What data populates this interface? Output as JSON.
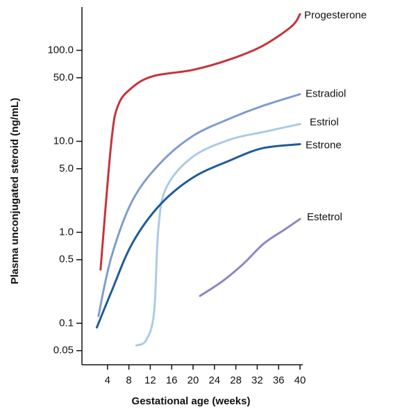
{
  "chart_data": {
    "type": "line",
    "log_y": true,
    "x_label": "Gestational age (weeks)",
    "y_label": "Plasma unconjugated steroid (ng/mL)",
    "xlim": [
      0,
      40
    ],
    "xticks": [
      4,
      8,
      12,
      16,
      20,
      24,
      28,
      32,
      36,
      40
    ],
    "ylim": [
      0.035,
      300
    ],
    "yticks": [
      0.05,
      0.1,
      0.5,
      {
        "value": 1,
        "label": "1.0"
      },
      {
        "value": 5,
        "label": "5.0"
      },
      {
        "value": 10,
        "label": "10.0"
      },
      {
        "value": 50,
        "label": "50.0"
      },
      {
        "value": 100,
        "label": "100.0"
      }
    ],
    "series": [
      {
        "name": "Progesterone",
        "color": "#c8323a",
        "x": [
          2.7,
          4.7,
          6,
          8.6,
          12.5,
          20,
          27,
          33,
          38.4,
          40
        ],
        "values": [
          0.39,
          9.6,
          25,
          39,
          52,
          61,
          80,
          112,
          183,
          250
        ]
      },
      {
        "name": "Estradiol",
        "color": "#7f9ccf",
        "x": [
          2.3,
          4.7,
          8.6,
          13.8,
          20,
          27,
          33,
          40
        ],
        "values": [
          0.12,
          0.53,
          2.2,
          5.7,
          11.5,
          17.9,
          24.5,
          33
        ]
      },
      {
        "name": "Estriol",
        "color": "#a9cbe8",
        "x": [
          9.4,
          11.2,
          12.7,
          13.5,
          15,
          20,
          27,
          33,
          40
        ],
        "values": [
          0.057,
          0.065,
          0.13,
          1.07,
          3.1,
          6.8,
          10.5,
          12.6,
          15.5
        ]
      },
      {
        "name": "Estrone",
        "color": "#1f5a9c",
        "x": [
          2,
          4.7,
          8.6,
          13.8,
          20,
          27,
          33,
          40
        ],
        "values": [
          0.09,
          0.22,
          0.75,
          2,
          4,
          6.2,
          8.4,
          9.3
        ]
      },
      {
        "name": "Estetrol",
        "color": "#8f86c0",
        "x": [
          21.3,
          25.5,
          29.4,
          33.2,
          37.1,
          40
        ],
        "values": [
          0.2,
          0.29,
          0.45,
          0.75,
          1.07,
          1.4
        ]
      }
    ]
  }
}
